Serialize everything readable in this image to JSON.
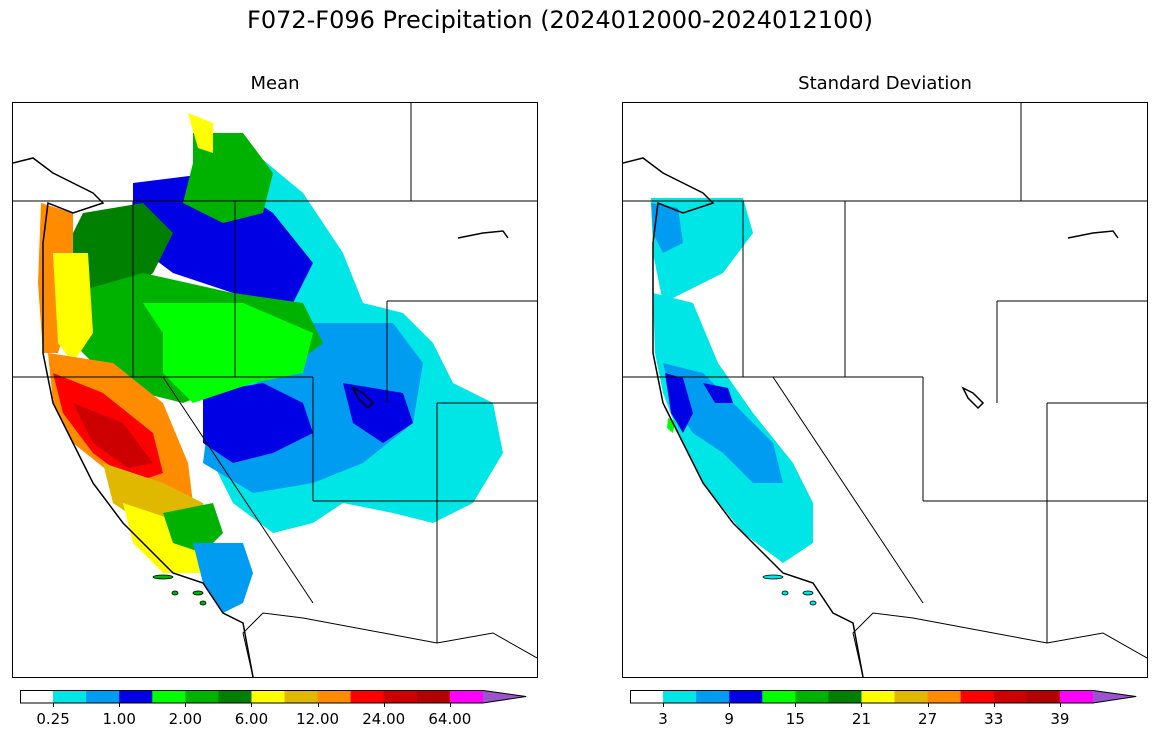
{
  "suptitle": "F072-F096 Precipitation (2024012000-2024012100)",
  "panels": {
    "mean": {
      "title": "Mean"
    },
    "std": {
      "title": "Standard Deviation"
    }
  },
  "colorbars": {
    "mean": {
      "colors": [
        "#ffffff",
        "#00e5e5",
        "#009cf2",
        "#0000e5",
        "#00ff00",
        "#00b200",
        "#008000",
        "#ffff00",
        "#e0b800",
        "#ff8c00",
        "#ff0000",
        "#cc0000",
        "#b30000",
        "#ff00ff",
        "#9955cc"
      ],
      "tick_labels": [
        "0.25",
        "1.00",
        "2.00",
        "6.00",
        "12.00",
        "24.00",
        "64.00"
      ]
    },
    "std": {
      "colors": [
        "#ffffff",
        "#00e5e5",
        "#009cf2",
        "#0000e5",
        "#00ff00",
        "#00b200",
        "#008000",
        "#ffff00",
        "#e0b800",
        "#ff8c00",
        "#ff0000",
        "#cc0000",
        "#b30000",
        "#ff00ff",
        "#9955cc"
      ],
      "tick_labels": [
        "3",
        "9",
        "15",
        "21",
        "27",
        "33",
        "39"
      ]
    }
  }
}
